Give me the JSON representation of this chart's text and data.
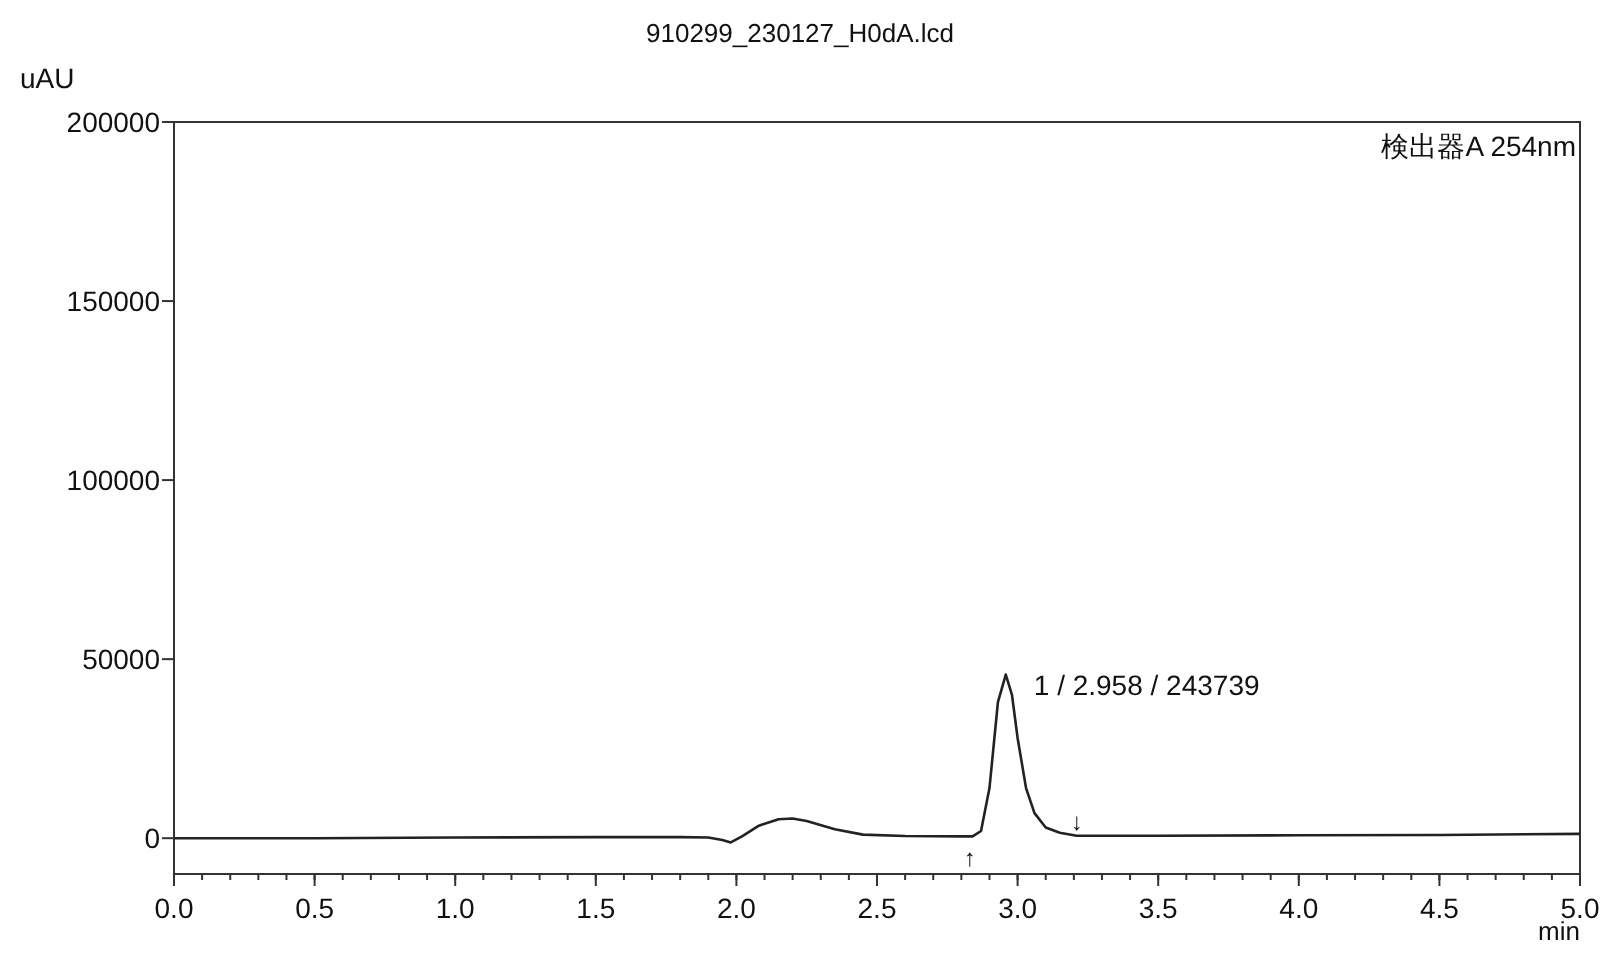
{
  "chart_data": {
    "type": "line",
    "title": "910299_230127_H0dA.lcd",
    "ylabel": "uAU",
    "xlabel": "min",
    "annotations": [
      "検出器A 254nm",
      {
        "text": "1 / 2.958 / 243739",
        "x": 2.958,
        "y": 45700
      },
      {
        "text": "↑",
        "x": 2.83,
        "y": 0
      },
      {
        "text": "↓",
        "x": 3.21,
        "y": 700
      }
    ],
    "series": [
      {
        "color": "#222222",
        "x": [
          0,
          0.5,
          1.0,
          1.5,
          1.8,
          1.9,
          1.95,
          1.98,
          2.02,
          2.08,
          2.15,
          2.2,
          2.25,
          2.35,
          2.45,
          2.6,
          2.8,
          2.84,
          2.87,
          2.9,
          2.93,
          2.958,
          2.98,
          3.0,
          3.03,
          3.06,
          3.1,
          3.15,
          3.21,
          3.5,
          4.0,
          4.5,
          5.0
        ],
        "values": [
          0,
          0,
          200,
          300,
          300,
          200,
          -500,
          -1200,
          500,
          3500,
          5300,
          5500,
          4800,
          2500,
          1000,
          600,
          500,
          500,
          2000,
          14000,
          38000,
          45700,
          40000,
          28000,
          14000,
          7000,
          3000,
          1500,
          700,
          700,
          800,
          900,
          1200
        ]
      }
    ],
    "xlim": [
      0,
      5
    ],
    "ylim": [
      -10000,
      200000
    ],
    "xticks": [
      {
        "value": 0,
        "label": "0.0"
      },
      {
        "value": 0.5,
        "label": "0.5"
      },
      {
        "value": 1,
        "label": "1.0"
      },
      {
        "value": 1.5,
        "label": "1.5"
      },
      {
        "value": 2,
        "label": "2.0"
      },
      {
        "value": 2.5,
        "label": "2.5"
      },
      {
        "value": 3,
        "label": "3.0"
      },
      {
        "value": 3.5,
        "label": "3.5"
      },
      {
        "value": 4,
        "label": "4.0"
      },
      {
        "value": 4.5,
        "label": "4.5"
      },
      {
        "value": 5,
        "label": "5.0"
      }
    ],
    "yticks": [
      0,
      50000,
      100000,
      150000,
      200000
    ],
    "grid": false,
    "marker": "none",
    "line_style": "solid"
  }
}
